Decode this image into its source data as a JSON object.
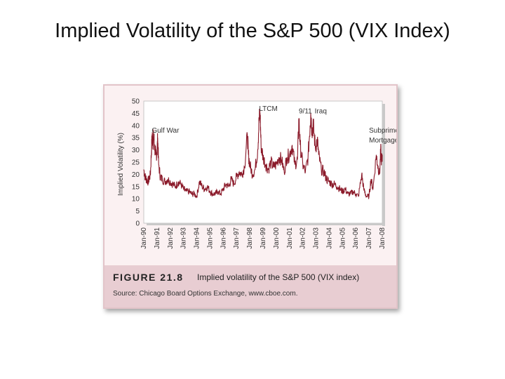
{
  "slide": {
    "title": "Implied Volatility of the S&P 500 (VIX Index)"
  },
  "figure": {
    "label": "FIGURE 21.8",
    "caption": "Implied volatility of the S&P 500 (VIX index)",
    "source": "Source: Chicago Board Options Exchange, www.cboe.com."
  },
  "colors": {
    "series": "#8b1a2a",
    "panel_bg": "#fbf1f2",
    "caption_band": "#e8cdd2"
  },
  "chart_data": {
    "type": "line",
    "title": "",
    "xlabel": "",
    "ylabel": "Implied Volatility (%)",
    "ylim": [
      0,
      50
    ],
    "yticks": [
      0,
      5,
      10,
      15,
      20,
      25,
      30,
      35,
      40,
      45,
      50
    ],
    "xlim": [
      1990.0,
      2008.0
    ],
    "xtick_labels": [
      "Jan-90",
      "Jan-91",
      "Jan-92",
      "Jan-93",
      "Jan-94",
      "Jan-95",
      "Jan-96",
      "Jan-97",
      "Jan-98",
      "Jan-99",
      "Jan-00",
      "Jan-01",
      "Jan-02",
      "Jan-03",
      "Jan-04",
      "Jan-05",
      "Jan-06",
      "Jan-07",
      "Jan-08"
    ],
    "grid": false,
    "annotations": [
      {
        "text": "Gulf War",
        "x": 1990.6,
        "y": 37
      },
      {
        "text": "LTCM",
        "x": 1998.7,
        "y": 46
      },
      {
        "text": "9/11",
        "x": 2001.7,
        "y": 45
      },
      {
        "text": "Iraq",
        "x": 2002.9,
        "y": 45
      },
      {
        "text": "Subprime",
        "x": 2007.0,
        "y": 37
      },
      {
        "text": "Mortgages",
        "x": 2007.0,
        "y": 33
      }
    ],
    "series": [
      {
        "points": [
          [
            1990.0,
            22
          ],
          [
            1990.1,
            19
          ],
          [
            1990.2,
            18
          ],
          [
            1990.3,
            17
          ],
          [
            1990.4,
            18
          ],
          [
            1990.5,
            20
          ],
          [
            1990.58,
            30
          ],
          [
            1990.63,
            36
          ],
          [
            1990.7,
            33
          ],
          [
            1990.75,
            36
          ],
          [
            1990.82,
            31
          ],
          [
            1990.9,
            28
          ],
          [
            1991.0,
            29
          ],
          [
            1991.05,
            35
          ],
          [
            1991.12,
            24
          ],
          [
            1991.25,
            19
          ],
          [
            1991.4,
            18
          ],
          [
            1991.6,
            17
          ],
          [
            1991.8,
            18
          ],
          [
            1992.0,
            17
          ],
          [
            1992.2,
            16
          ],
          [
            1992.4,
            15
          ],
          [
            1992.6,
            17
          ],
          [
            1992.8,
            16
          ],
          [
            1993.0,
            14
          ],
          [
            1993.2,
            13
          ],
          [
            1993.4,
            13
          ],
          [
            1993.6,
            12
          ],
          [
            1993.8,
            12
          ],
          [
            1994.0,
            11
          ],
          [
            1994.2,
            17
          ],
          [
            1994.4,
            15
          ],
          [
            1994.6,
            14
          ],
          [
            1994.8,
            15
          ],
          [
            1995.0,
            13
          ],
          [
            1995.2,
            12
          ],
          [
            1995.4,
            12
          ],
          [
            1995.6,
            13
          ],
          [
            1995.8,
            12
          ],
          [
            1996.0,
            14
          ],
          [
            1996.2,
            16
          ],
          [
            1996.4,
            15
          ],
          [
            1996.6,
            18
          ],
          [
            1996.8,
            16
          ],
          [
            1997.0,
            19
          ],
          [
            1997.2,
            21
          ],
          [
            1997.4,
            20
          ],
          [
            1997.6,
            23
          ],
          [
            1997.82,
            36
          ],
          [
            1997.9,
            28
          ],
          [
            1998.0,
            24
          ],
          [
            1998.2,
            20
          ],
          [
            1998.4,
            22
          ],
          [
            1998.6,
            30
          ],
          [
            1998.7,
            42
          ],
          [
            1998.78,
            45
          ],
          [
            1998.85,
            32
          ],
          [
            1999.0,
            27
          ],
          [
            1999.2,
            24
          ],
          [
            1999.4,
            22
          ],
          [
            1999.6,
            25
          ],
          [
            1999.8,
            23
          ],
          [
            2000.0,
            24
          ],
          [
            2000.2,
            27
          ],
          [
            2000.4,
            26
          ],
          [
            2000.6,
            21
          ],
          [
            2000.8,
            27
          ],
          [
            2001.0,
            28
          ],
          [
            2001.2,
            32
          ],
          [
            2001.4,
            24
          ],
          [
            2001.6,
            26
          ],
          [
            2001.71,
            43
          ],
          [
            2001.8,
            32
          ],
          [
            2002.0,
            24
          ],
          [
            2002.2,
            21
          ],
          [
            2002.4,
            27
          ],
          [
            2002.55,
            40
          ],
          [
            2002.6,
            45
          ],
          [
            2002.7,
            38
          ],
          [
            2002.8,
            40
          ],
          [
            2002.95,
            31
          ],
          [
            2003.1,
            34
          ],
          [
            2003.2,
            28
          ],
          [
            2003.4,
            22
          ],
          [
            2003.6,
            21
          ],
          [
            2003.8,
            18
          ],
          [
            2004.0,
            17
          ],
          [
            2004.2,
            16
          ],
          [
            2004.4,
            16
          ],
          [
            2004.6,
            15
          ],
          [
            2004.8,
            14
          ],
          [
            2005.0,
            13
          ],
          [
            2005.2,
            14
          ],
          [
            2005.4,
            12
          ],
          [
            2005.6,
            12
          ],
          [
            2005.8,
            13
          ],
          [
            2006.0,
            12
          ],
          [
            2006.2,
            11
          ],
          [
            2006.45,
            20
          ],
          [
            2006.6,
            14
          ],
          [
            2006.8,
            11
          ],
          [
            2007.0,
            11
          ],
          [
            2007.15,
            18
          ],
          [
            2007.3,
            14
          ],
          [
            2007.55,
            28
          ],
          [
            2007.65,
            24
          ],
          [
            2007.8,
            20
          ],
          [
            2007.88,
            30
          ],
          [
            2007.95,
            25
          ],
          [
            2008.0,
            28
          ]
        ]
      }
    ]
  }
}
